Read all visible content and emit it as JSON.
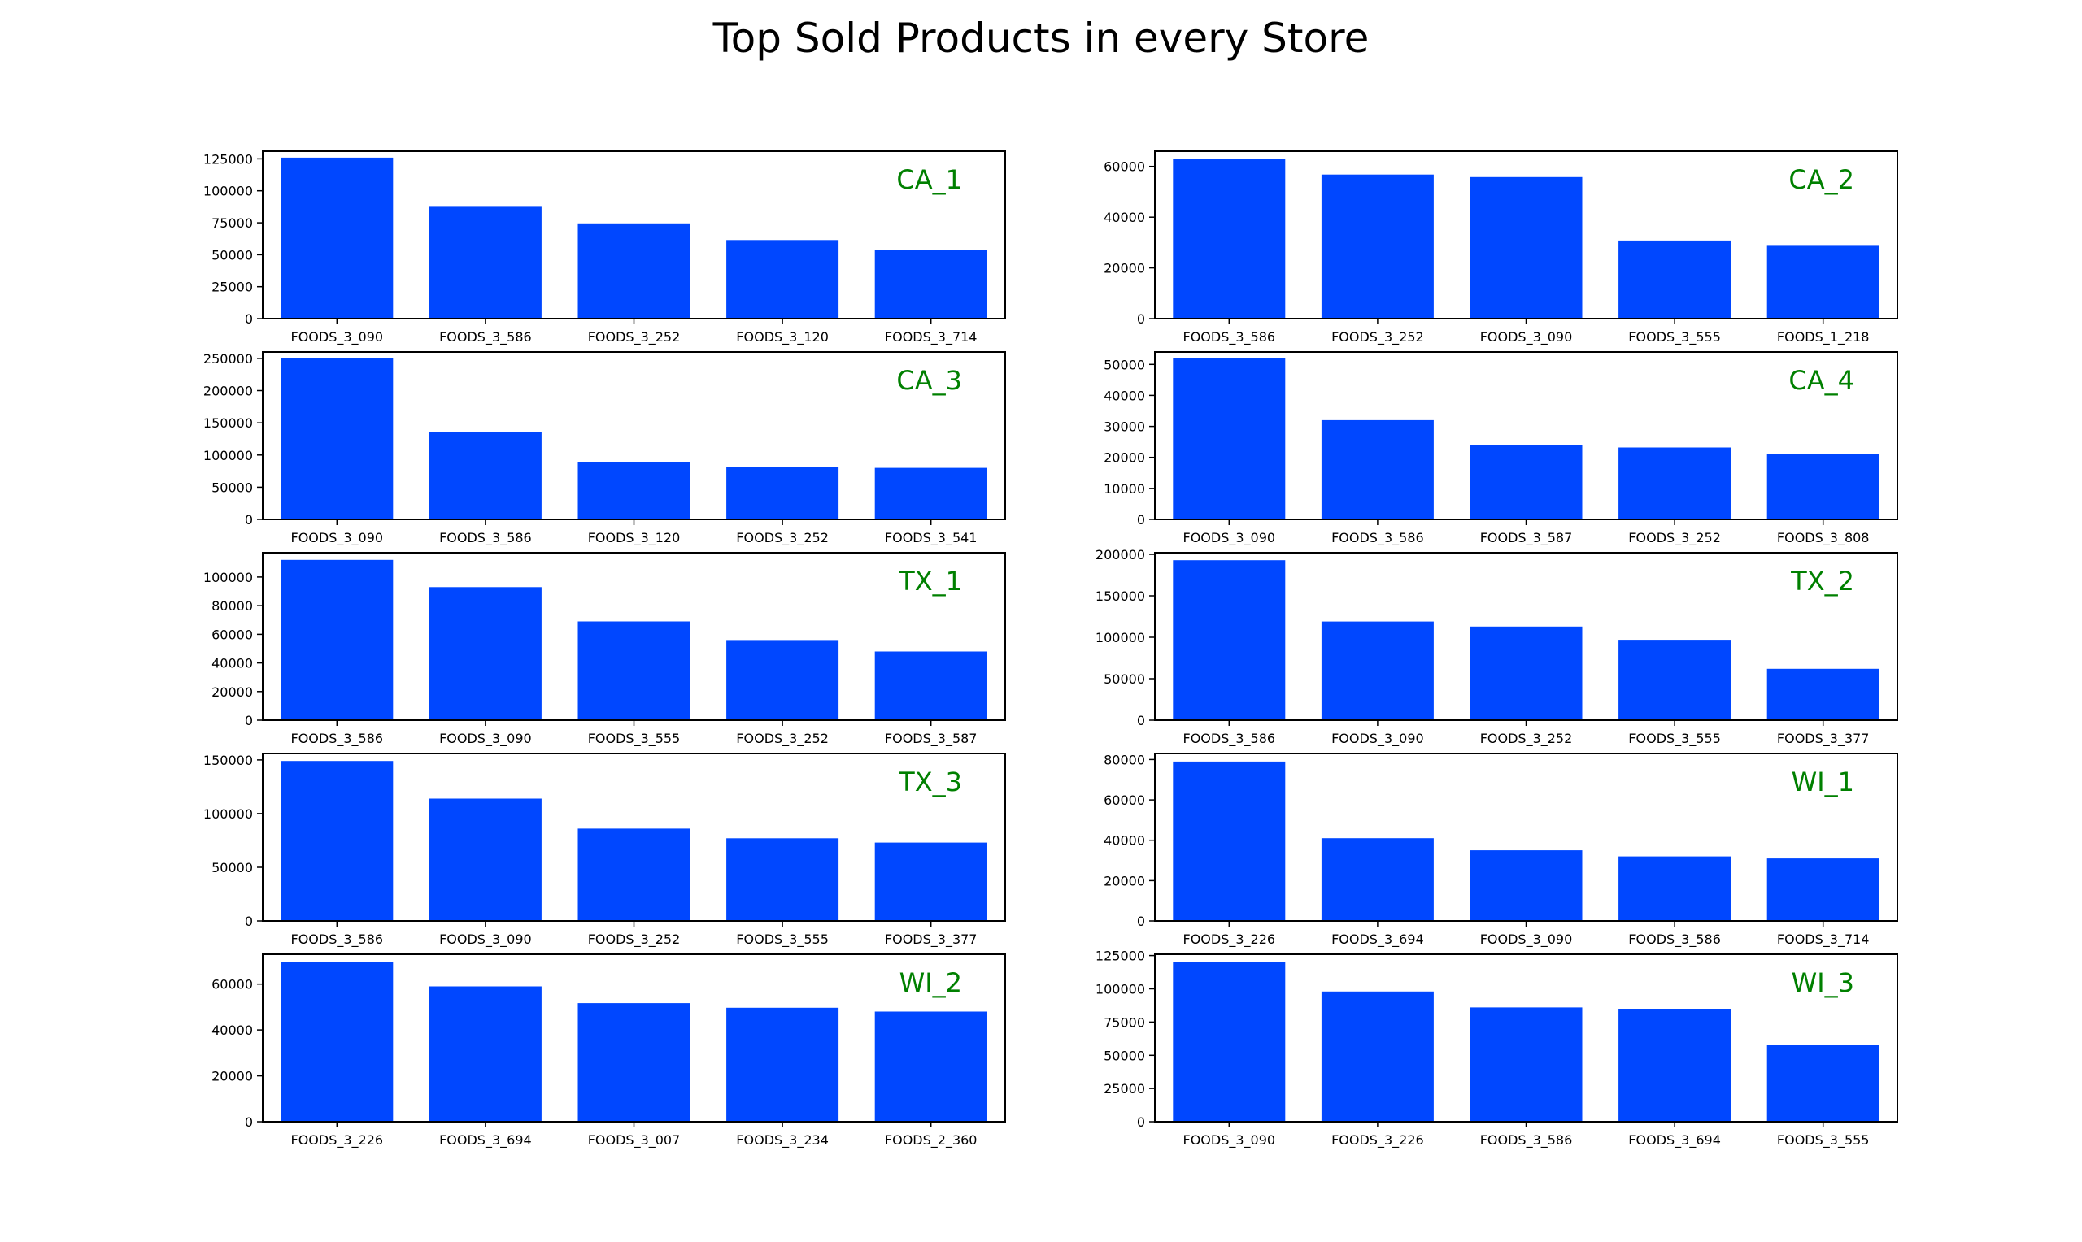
{
  "figure_title": "Top Sold Products in every Store",
  "colors": {
    "bar": "#0047FF",
    "store_label": "#008000",
    "axis": "#000000"
  },
  "chart_data": [
    {
      "type": "bar",
      "store": "CA_1",
      "categories": [
        "FOODS_3_090",
        "FOODS_3_586",
        "FOODS_3_252",
        "FOODS_3_120",
        "FOODS_3_714"
      ],
      "values": [
        126000,
        87500,
        74500,
        61500,
        53500
      ],
      "ylim": [
        0,
        131000
      ],
      "yticks": [
        0,
        25000,
        50000,
        75000,
        100000,
        125000
      ]
    },
    {
      "type": "bar",
      "store": "CA_2",
      "categories": [
        "FOODS_3_586",
        "FOODS_3_252",
        "FOODS_3_090",
        "FOODS_3_555",
        "FOODS_1_218"
      ],
      "values": [
        63000,
        56800,
        55800,
        30800,
        28700
      ],
      "ylim": [
        0,
        66000
      ],
      "yticks": [
        0,
        20000,
        40000,
        60000
      ]
    },
    {
      "type": "bar",
      "store": "CA_3",
      "categories": [
        "FOODS_3_090",
        "FOODS_3_586",
        "FOODS_3_120",
        "FOODS_3_252",
        "FOODS_3_541"
      ],
      "values": [
        250000,
        135000,
        89000,
        82000,
        80000
      ],
      "ylim": [
        0,
        260000
      ],
      "yticks": [
        0,
        50000,
        100000,
        150000,
        200000,
        250000
      ]
    },
    {
      "type": "bar",
      "store": "CA_4",
      "categories": [
        "FOODS_3_090",
        "FOODS_3_586",
        "FOODS_3_587",
        "FOODS_3_252",
        "FOODS_3_808"
      ],
      "values": [
        52000,
        32000,
        24000,
        23200,
        21000
      ],
      "ylim": [
        0,
        54000
      ],
      "yticks": [
        0,
        10000,
        20000,
        30000,
        40000,
        50000
      ]
    },
    {
      "type": "bar",
      "store": "TX_1",
      "categories": [
        "FOODS_3_586",
        "FOODS_3_090",
        "FOODS_3_555",
        "FOODS_3_252",
        "FOODS_3_587"
      ],
      "values": [
        112000,
        93000,
        69000,
        56000,
        48000
      ],
      "ylim": [
        0,
        117000
      ],
      "yticks": [
        0,
        20000,
        40000,
        60000,
        80000,
        100000
      ]
    },
    {
      "type": "bar",
      "store": "TX_2",
      "categories": [
        "FOODS_3_586",
        "FOODS_3_090",
        "FOODS_3_252",
        "FOODS_3_555",
        "FOODS_3_377"
      ],
      "values": [
        193000,
        119000,
        113000,
        97000,
        62000
      ],
      "ylim": [
        0,
        202000
      ],
      "yticks": [
        0,
        50000,
        100000,
        150000,
        200000
      ]
    },
    {
      "type": "bar",
      "store": "TX_3",
      "categories": [
        "FOODS_3_586",
        "FOODS_3_090",
        "FOODS_3_252",
        "FOODS_3_555",
        "FOODS_3_377"
      ],
      "values": [
        149000,
        114000,
        86000,
        77000,
        73000
      ],
      "ylim": [
        0,
        156000
      ],
      "yticks": [
        0,
        50000,
        100000,
        150000
      ]
    },
    {
      "type": "bar",
      "store": "WI_1",
      "categories": [
        "FOODS_3_226",
        "FOODS_3_694",
        "FOODS_3_090",
        "FOODS_3_586",
        "FOODS_3_714"
      ],
      "values": [
        79000,
        41000,
        35000,
        32000,
        31000
      ],
      "ylim": [
        0,
        83000
      ],
      "yticks": [
        0,
        20000,
        40000,
        60000,
        80000
      ]
    },
    {
      "type": "bar",
      "store": "WI_2",
      "categories": [
        "FOODS_3_226",
        "FOODS_3_694",
        "FOODS_3_007",
        "FOODS_3_234",
        "FOODS_2_360"
      ],
      "values": [
        69500,
        59000,
        51700,
        49700,
        48000
      ],
      "ylim": [
        0,
        73000
      ],
      "yticks": [
        0,
        20000,
        40000,
        60000
      ]
    },
    {
      "type": "bar",
      "store": "WI_3",
      "categories": [
        "FOODS_3_090",
        "FOODS_3_226",
        "FOODS_3_586",
        "FOODS_3_694",
        "FOODS_3_555"
      ],
      "values": [
        120000,
        98000,
        86000,
        85000,
        57500
      ],
      "ylim": [
        0,
        126000
      ],
      "yticks": [
        0,
        25000,
        50000,
        75000,
        100000,
        125000
      ]
    }
  ]
}
